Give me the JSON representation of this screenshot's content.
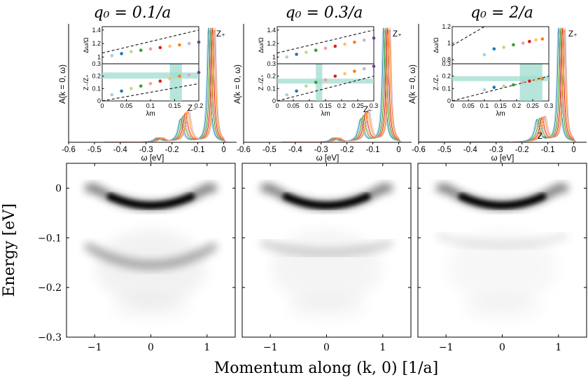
{
  "panel_titles": [
    "q₀ = 0.1/a",
    "q₀ = 0.3/a",
    "q₀ = 2/a"
  ],
  "colors": {
    "series": [
      "#a6cee3",
      "#1f78b4",
      "#b2df8a",
      "#33a02c",
      "#fb9a99",
      "#e31a1c",
      "#fdbf6f",
      "#ff7f00",
      "#cab2d6",
      "#6a3d9a"
    ],
    "shade": "#9fdccf",
    "intensity": "#000000"
  },
  "chart_data": [
    {
      "type": "line",
      "panel": 1,
      "title": "q₀ = 0.1/a",
      "xlabel": "ω [eV]",
      "ylabel": "A(k = 0, ω)",
      "xlim": [
        -0.6,
        0.05
      ],
      "xticks": [
        "-0.6",
        "-0.5",
        "-0.4",
        "-0.3",
        "-0.2",
        "-0.1",
        "0"
      ],
      "peak_labels": [
        "Z₊",
        "Z₋"
      ],
      "peaks": {
        "main": -0.045,
        "satellite": -0.15,
        "faint": -0.245
      },
      "inset": {
        "xlabel": "λm",
        "xlim": [
          0,
          0.2
        ],
        "xticks": [
          "0",
          "0.05",
          "0.1",
          "0.15",
          "0.2"
        ],
        "top_ylabel": "Δω/Ω",
        "top_ylim": [
          0.9,
          1.45
        ],
        "top_yticks": [
          "1",
          "1.2",
          "1.4"
        ],
        "bottom_ylabel": "Z₋/Z₊",
        "bottom_ylim": [
          0,
          0.3
        ],
        "bottom_yticks": [
          "0",
          "0.1",
          "0.2",
          "0.3"
        ],
        "lambda": [
          0.02,
          0.04,
          0.06,
          0.08,
          0.1,
          0.12,
          0.14,
          0.16,
          0.18,
          0.2
        ],
        "dw_over_omega": [
          1.02,
          1.05,
          1.08,
          1.1,
          1.12,
          1.14,
          1.16,
          1.18,
          1.2,
          1.22
        ],
        "z_ratio": [
          0.05,
          0.08,
          0.1,
          0.12,
          0.14,
          0.16,
          0.18,
          0.2,
          0.21,
          0.23
        ],
        "shade": {
          "x": [
            0.14,
            0.165
          ],
          "y": [
            0.18,
            0.23
          ]
        }
      }
    },
    {
      "type": "line",
      "panel": 2,
      "title": "q₀ = 0.3/a",
      "xlabel": "ω [eV]",
      "ylabel": "A(k = 0, ω)",
      "xlim": [
        -0.6,
        0.05
      ],
      "xticks": [
        "-0.6",
        "-0.5",
        "-0.4",
        "-0.3",
        "-0.2",
        "-0.1",
        "0"
      ],
      "peak_labels": [
        "Z₊",
        "Z₋"
      ],
      "peaks": {
        "main": -0.045,
        "satellite": -0.13,
        "faint": -0.24
      },
      "inset": {
        "xlabel": "λm",
        "xlim": [
          0,
          0.3
        ],
        "xticks": [
          "0",
          "0.05",
          "0.1",
          "0.15",
          "0.2",
          "0.25",
          "0.3"
        ],
        "top_ylabel": "Δω/Ω",
        "top_ylim": [
          0.9,
          1.45
        ],
        "top_yticks": [
          "1",
          "1.2",
          "1.4"
        ],
        "bottom_ylabel": "Z₋/Z₊",
        "bottom_ylim": [
          0,
          0.3
        ],
        "bottom_yticks": [
          "0",
          "0.1",
          "0.2",
          "0.3"
        ],
        "lambda": [
          0.03,
          0.06,
          0.09,
          0.12,
          0.15,
          0.18,
          0.21,
          0.24,
          0.27,
          0.3
        ],
        "dw_over_omega": [
          1.0,
          1.04,
          1.07,
          1.1,
          1.13,
          1.16,
          1.19,
          1.22,
          1.25,
          1.28
        ],
        "z_ratio": [
          0.05,
          0.08,
          0.12,
          0.15,
          0.17,
          0.2,
          0.22,
          0.24,
          0.26,
          0.28
        ],
        "shade": {
          "x": [
            0.12,
            0.14
          ],
          "y": [
            0.14,
            0.18
          ]
        }
      }
    },
    {
      "type": "line",
      "panel": 3,
      "title": "q₀ = 2/a",
      "xlabel": "ω [eV]",
      "ylabel": "A(k = 0, ω)",
      "xlim": [
        -0.6,
        0.05
      ],
      "xticks": [
        "-0.6",
        "-0.5",
        "-0.4",
        "-0.3",
        "-0.2",
        "-0.1",
        "0"
      ],
      "peak_labels": [
        "Z₊",
        "Z₋"
      ],
      "peaks": {
        "main": -0.045,
        "satellite": -0.125,
        "faint": null
      },
      "inset": {
        "xlabel": "λm",
        "xlim": [
          0,
          0.3
        ],
        "xticks": [
          "0",
          "0.05",
          "0.1",
          "0.15",
          "0.2",
          "0.25",
          "0.3"
        ],
        "top_ylabel": "Δω/Ω",
        "top_ylim": [
          0.75,
          1.2
        ],
        "top_yticks": [
          "0.8",
          "1",
          "1.2"
        ],
        "bottom_ylabel": "Z₋/Z₊",
        "bottom_ylim": [
          0,
          0.3
        ],
        "bottom_yticks": [
          "0",
          "0.1",
          "0.2",
          "0.3"
        ],
        "lambda": [
          0.1,
          0.13,
          0.16,
          0.19,
          0.22,
          0.24,
          0.26,
          0.28
        ],
        "dw_over_omega": [
          0.86,
          0.93,
          0.95,
          0.98,
          1.0,
          1.02,
          1.04,
          1.05
        ],
        "z_ratio": [
          0.09,
          0.11,
          0.12,
          0.13,
          0.15,
          0.16,
          0.17,
          0.18
        ],
        "shade": {
          "x": [
            0.21,
            0.28
          ],
          "y": [
            0.16,
            0.2
          ]
        }
      }
    },
    {
      "type": "heatmap",
      "panels": 3,
      "xlabel": "Momentum along (k, 0) [1/a]",
      "ylabel": "Energy [eV]",
      "xlim": [
        -1.5,
        1.5
      ],
      "ylim": [
        -0.3,
        0.05
      ],
      "xticks": [
        "−1",
        "0",
        "1"
      ],
      "yticks": [
        "0",
        "−0.1",
        "−0.2",
        "−0.3"
      ],
      "main_band": {
        "bottom_energy": -0.035,
        "curvature": 0.035,
        "k_extent": 1.1
      },
      "replica_band_energy": [
        -0.145,
        -0.135,
        -0.12
      ],
      "replica_band_strength": [
        0.32,
        0.16,
        0.08
      ]
    }
  ]
}
